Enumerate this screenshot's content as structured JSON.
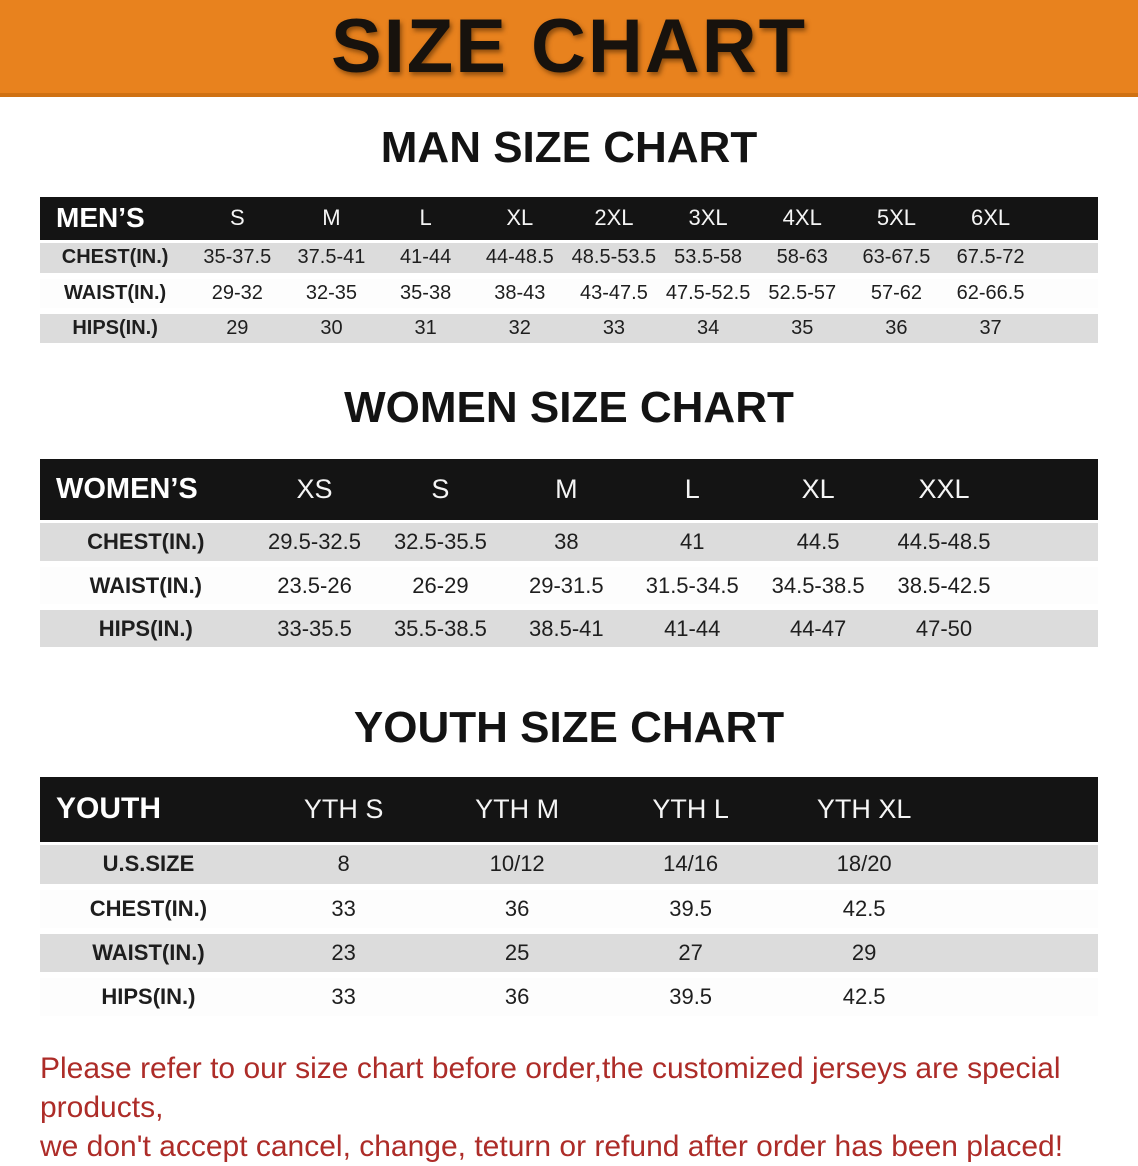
{
  "banner": {
    "title": "SIZE CHART"
  },
  "colors": {
    "banner_bg": "#e8821e",
    "banner_border": "#cf7113",
    "table_header_bar": "#141414",
    "row_stripe_gray": "#dcdcdc",
    "row_stripe_white": "#fdfdfd",
    "note_text": "#ad2c28",
    "title_text": "#131313"
  },
  "chart_data": [
    {
      "type": "table",
      "title": "MAN SIZE CHART",
      "header_row": [
        "MEN’S",
        "S",
        "M",
        "L",
        "XL",
        "2XL",
        "3XL",
        "4XL",
        "5XL",
        "6XL"
      ],
      "rows": [
        [
          "CHEST(IN.)",
          "35-37.5",
          "37.5-41",
          "41-44",
          "44-48.5",
          "48.5-53.5",
          "53.5-58",
          "58-63",
          "63-67.5",
          "67.5-72"
        ],
        [
          "WAIST(IN.)",
          "29-32",
          "32-35",
          "35-38",
          "38-43",
          "43-47.5",
          "47.5-52.5",
          "52.5-57",
          "57-62",
          "62-66.5"
        ],
        [
          "HIPS(IN.)",
          "29",
          "30",
          "31",
          "32",
          "33",
          "34",
          "35",
          "36",
          "37"
        ]
      ]
    },
    {
      "type": "table",
      "title": "WOMEN SIZE CHART",
      "header_row": [
        "WOMEN’S",
        "XS",
        "S",
        "M",
        "L",
        "XL",
        "XXL"
      ],
      "rows": [
        [
          "CHEST(IN.)",
          "29.5-32.5",
          "32.5-35.5",
          "38",
          "41",
          "44.5",
          "44.5-48.5"
        ],
        [
          "WAIST(IN.)",
          "23.5-26",
          "26-29",
          "29-31.5",
          "31.5-34.5",
          "34.5-38.5",
          "38.5-42.5"
        ],
        [
          "HIPS(IN.)",
          "33-35.5",
          "35.5-38.5",
          "38.5-41",
          "41-44",
          "44-47",
          "47-50"
        ]
      ]
    },
    {
      "type": "table",
      "title": "YOUTH SIZE CHART",
      "header_row": [
        "YOUTH",
        "YTH S",
        "YTH M",
        "YTH L",
        "YTH XL"
      ],
      "rows": [
        [
          "U.S.SIZE",
          "8",
          "10/12",
          "14/16",
          "18/20"
        ],
        [
          "CHEST(IN.)",
          "33",
          "36",
          "39.5",
          "42.5"
        ],
        [
          "WAIST(IN.)",
          "23",
          "25",
          "27",
          "29"
        ],
        [
          "HIPS(IN.)",
          "33",
          "36",
          "39.5",
          "42.5"
        ]
      ]
    }
  ],
  "note": {
    "line1": "Please refer to our size chart before order,the customized jerseys are special products,",
    "line2": "we don't accept cancel, change, teturn or refund after order has been placed!"
  }
}
